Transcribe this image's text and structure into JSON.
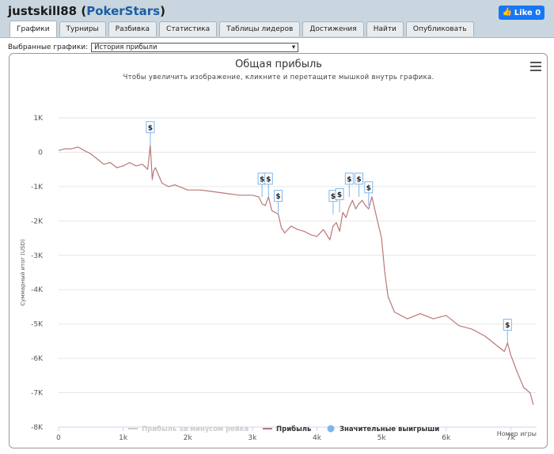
{
  "header": {
    "username": "justskill88",
    "site_open": " (",
    "site": "PokerStars",
    "site_close": ")",
    "fb_label": "Like 0"
  },
  "tabs": [
    "Графики",
    "Турниры",
    "Разбивка",
    "Статистика",
    "Таблицы лидеров",
    "Достижения",
    "Найти",
    "Опубликовать"
  ],
  "selector": {
    "label": "Выбранные графики:",
    "value": "История прибыли"
  },
  "chart_data": {
    "type": "line",
    "title": "Общая прибыль",
    "subtitle": "Чтобы увеличить изображение, кликните и перетащите мышкой внутрь графика.",
    "xlabel": "Номер игры",
    "ylabel": "Суммарный итог (USD)",
    "xlim": [
      0,
      7400
    ],
    "ylim": [
      -8000,
      1000
    ],
    "x_ticks": [
      0,
      1000,
      2000,
      3000,
      4000,
      5000,
      6000,
      7000
    ],
    "x_tick_labels": [
      "0",
      "1k",
      "2k",
      "3k",
      "4k",
      "5k",
      "6k",
      "7k"
    ],
    "y_ticks": [
      1000,
      0,
      -1000,
      -2000,
      -3000,
      -4000,
      -5000,
      -6000,
      -7000,
      -8000
    ],
    "y_tick_labels": [
      "1K",
      "0",
      "-1K",
      "-2K",
      "-3K",
      "-4K",
      "-5K",
      "-6K",
      "-7K",
      "-8K"
    ],
    "series": [
      {
        "name": "Прибыль",
        "color": "#b87878",
        "x": [
          0,
          100,
          200,
          300,
          400,
          500,
          600,
          700,
          800,
          900,
          1000,
          1100,
          1200,
          1300,
          1380,
          1420,
          1450,
          1470,
          1500,
          1600,
          1700,
          1800,
          2000,
          2200,
          2400,
          2600,
          2800,
          3000,
          3100,
          3150,
          3200,
          3250,
          3300,
          3400,
          3450,
          3500,
          3600,
          3700,
          3800,
          3900,
          4000,
          4100,
          4200,
          4250,
          4300,
          4350,
          4400,
          4450,
          4500,
          4550,
          4600,
          4650,
          4700,
          4750,
          4800,
          4850,
          4900,
          5000,
          5050,
          5100,
          5200,
          5400,
          5600,
          5800,
          6000,
          6200,
          6400,
          6600,
          6800,
          6900,
          6950,
          7000,
          7100,
          7200,
          7300,
          7350
        ],
        "y": [
          50,
          100,
          100,
          150,
          50,
          -50,
          -200,
          -350,
          -300,
          -450,
          -400,
          -300,
          -400,
          -350,
          -500,
          200,
          -800,
          -550,
          -450,
          -900,
          -1000,
          -950,
          -1100,
          -1100,
          -1150,
          -1200,
          -1250,
          -1250,
          -1300,
          -1500,
          -1550,
          -1300,
          -1700,
          -1800,
          -2200,
          -2350,
          -2150,
          -2250,
          -2300,
          -2400,
          -2450,
          -2250,
          -2550,
          -2150,
          -2050,
          -2300,
          -1750,
          -1900,
          -1600,
          -1400,
          -1650,
          -1500,
          -1400,
          -1550,
          -1650,
          -1300,
          -1700,
          -2500,
          -3500,
          -4200,
          -4650,
          -4850,
          -4700,
          -4850,
          -4750,
          -5050,
          -5150,
          -5350,
          -5650,
          -5800,
          -5550,
          -5900,
          -6400,
          -6850,
          -7000,
          -7350
        ]
      }
    ],
    "big_wins": {
      "name": "Значительные выигрыши",
      "marker": "$",
      "x": [
        1420,
        3150,
        3250,
        3400,
        4250,
        4350,
        4500,
        4650,
        4800,
        6950
      ],
      "y": [
        200,
        -1300,
        -1300,
        -1800,
        -1800,
        -1750,
        -1300,
        -1300,
        -1550,
        -5550
      ]
    },
    "legend": {
      "placement": "bottom-center",
      "items": [
        {
          "label": "Прибыль за минусом рейка",
          "color": "#c8c8c8",
          "hidden": true
        },
        {
          "label": "Прибыль",
          "color": "#b87878",
          "hidden": false
        },
        {
          "label": "Значительные выигрыши",
          "color": "#7cb5ec",
          "hidden": false
        }
      ]
    }
  }
}
